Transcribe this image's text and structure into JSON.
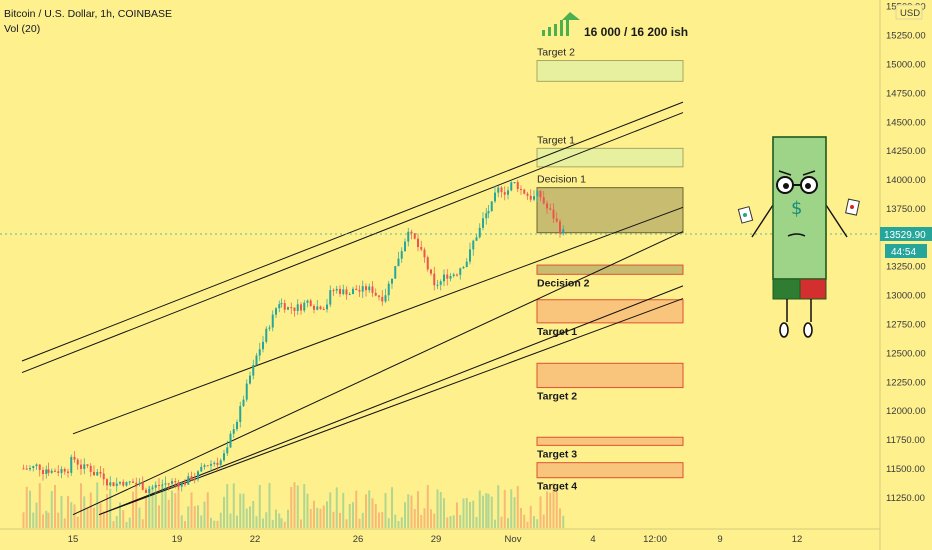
{
  "header": {
    "symbol": "Bitcoin / U.S. Dollar, 1h, COINBASE",
    "volume": "Vol (20)"
  },
  "price_axis": {
    "currency": "USD",
    "ticks": [
      "15500.00",
      "15250.00",
      "15000.00",
      "14750.00",
      "14500.00",
      "14250.00",
      "14000.00",
      "13750.00",
      "13500.00",
      "13250.00",
      "13000.00",
      "12750.00",
      "12500.00",
      "12250.00",
      "12000.00",
      "11750.00",
      "11500.00",
      "11250.00"
    ],
    "current_price": "13529.90",
    "countdown": "44:54",
    "current_price_color": "#26a69a"
  },
  "time_axis": {
    "ticks": [
      "15",
      "19",
      "22",
      "26",
      "29",
      "Nov",
      "4",
      "12:00",
      "9",
      "12"
    ]
  },
  "annotations": {
    "headline": "16 000 / 16 200 ish",
    "headline_icon": "rising-bars-icon",
    "upper_zones": [
      {
        "label": "Target 2",
        "low": 14850,
        "high": 15030,
        "color": "#e4f0a0"
      },
      {
        "label": "Target 1",
        "low": 14110,
        "high": 14270,
        "color": "#e4f0a0"
      },
      {
        "label": "Decision 1",
        "low": 13540,
        "high": 13930,
        "color": "#c2b66e"
      }
    ],
    "lower_zones": [
      {
        "label": "Decision 2",
        "low": 13180,
        "high": 13260,
        "color": "#c2b66e"
      },
      {
        "label": "Target 1",
        "low": 12760,
        "high": 12960,
        "color": "#f8c07a"
      },
      {
        "label": "Target 2",
        "low": 12200,
        "high": 12410,
        "color": "#f8c07a"
      },
      {
        "label": "Target 3",
        "low": 11700,
        "high": 11770,
        "color": "#f8c07a"
      },
      {
        "label": "Target 4",
        "low": 11420,
        "high": 11550,
        "color": "#f8c07a"
      }
    ],
    "mascot_icon": "dollar-bill-mascot-icon"
  },
  "chart_data": {
    "type": "candlestick",
    "title": "Bitcoin / U.S. Dollar, 1h, COINBASE",
    "xlabel": "",
    "ylabel": "",
    "ylim": [
      11100,
      15650
    ],
    "grid": false,
    "legend": "none",
    "x": [
      "Oct 13",
      "Oct 14",
      "Oct 15",
      "Oct 16",
      "Oct 17",
      "Oct 18",
      "Oct 19",
      "Oct 20",
      "Oct 21",
      "Oct 22",
      "Oct 23",
      "Oct 24",
      "Oct 25",
      "Oct 26",
      "Oct 27",
      "Oct 28",
      "Oct 29",
      "Oct 30",
      "Oct 31",
      "Nov 1",
      "Nov 2"
    ],
    "series": [
      {
        "values": [
          11500,
          11550,
          11460,
          11400,
          11330,
          11380,
          11470,
          11640,
          12360,
          12950,
          12920,
          13000,
          13050,
          13000,
          13600,
          13050,
          13250,
          13700,
          13950,
          13850,
          13530
        ]
      }
    ],
    "channel_lines": [
      {
        "from": {
          "x": "Oct 12",
          "y": 12430
        },
        "to": {
          "x": "Nov 4",
          "y": 14670
        }
      },
      {
        "from": {
          "x": "Oct 12",
          "y": 12330
        },
        "to": {
          "x": "Nov 4",
          "y": 14580
        }
      },
      {
        "from": {
          "x": "Oct 14",
          "y": 11800
        },
        "to": {
          "x": "Nov 4",
          "y": 13760
        }
      },
      {
        "from": {
          "x": "Oct 14",
          "y": 11100
        },
        "to": {
          "x": "Nov 4",
          "y": 13550
        }
      },
      {
        "from": {
          "x": "Oct 15",
          "y": 11100
        },
        "to": {
          "x": "Nov 4",
          "y": 13080
        }
      },
      {
        "from": {
          "x": "Oct 15",
          "y": 11100
        },
        "to": {
          "x": "Nov 4",
          "y": 12970
        }
      }
    ],
    "volume_label": "Vol (20)"
  }
}
